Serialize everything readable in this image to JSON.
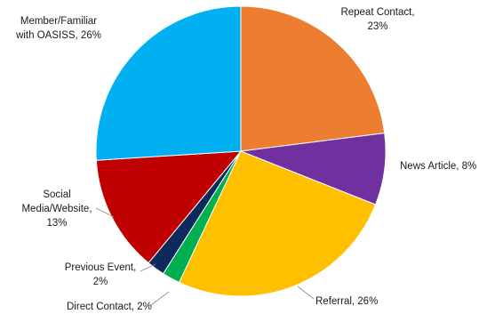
{
  "chart_data": {
    "type": "pie",
    "title": "",
    "start_angle_deg": 0,
    "direction": "clockwise",
    "slices": [
      {
        "name": "Repeat Contact",
        "value": 23,
        "label_lines": [
          "Repeat Contact,",
          "23%"
        ],
        "color": "#ED7D31"
      },
      {
        "name": "News Article",
        "value": 8,
        "label_lines": [
          "News Article, 8%"
        ],
        "color": "#7030A0"
      },
      {
        "name": "Referral",
        "value": 26,
        "label_lines": [
          "Referral, 26%"
        ],
        "color": "#FFC000"
      },
      {
        "name": "Direct Contact",
        "value": 2,
        "label_lines": [
          "Direct Contact, 2%"
        ],
        "color": "#00B050"
      },
      {
        "name": "Previous Event",
        "value": 2,
        "label_lines": [
          "Previous Event,",
          "2%"
        ],
        "color": "#0E2A5C"
      },
      {
        "name": "Social Media/Website",
        "value": 13,
        "label_lines": [
          "Social",
          "Media/Website,",
          "13%"
        ],
        "color": "#C00000"
      },
      {
        "name": "Member/Familiar with OASISS",
        "value": 26,
        "label_lines": [
          "Member/Familiar",
          "with OASISS, 26%"
        ],
        "color": "#00B0F0"
      }
    ]
  }
}
